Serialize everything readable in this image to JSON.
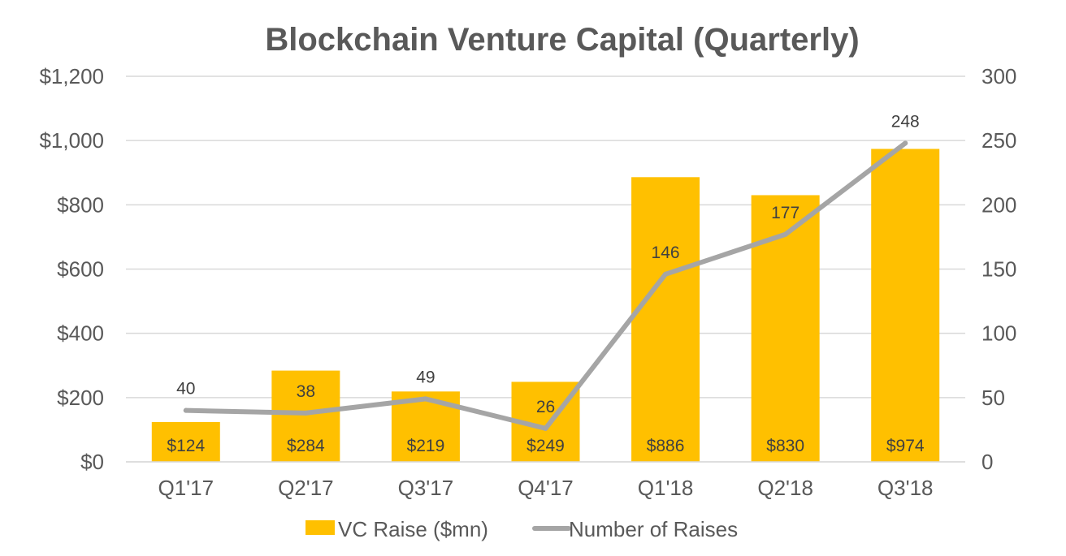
{
  "chart_data": {
    "type": "bar",
    "title": "Blockchain Venture Capital (Quarterly)",
    "categories": [
      "Q1'17",
      "Q2'17",
      "Q3'17",
      "Q4'17",
      "Q1'18",
      "Q2'18",
      "Q3'18"
    ],
    "series": [
      {
        "name": "VC Raise ($mn)",
        "type": "bar",
        "axis": "left",
        "color": "#FFC000",
        "values": [
          124,
          284,
          219,
          249,
          886,
          830,
          974
        ],
        "labels": [
          "$124",
          "$284",
          "$219",
          "$249",
          "$886",
          "$830",
          "$974"
        ]
      },
      {
        "name": "Number of Raises",
        "type": "line",
        "axis": "right",
        "color": "#A5A5A5",
        "values": [
          40,
          38,
          49,
          26,
          146,
          177,
          248
        ],
        "labels": [
          "40",
          "38",
          "49",
          "26",
          "146",
          "177",
          "248"
        ]
      }
    ],
    "y_left": {
      "range": [
        0,
        1200
      ],
      "ticks": [
        0,
        200,
        400,
        600,
        800,
        1000,
        1200
      ],
      "tick_labels": [
        "$0",
        "$200",
        "$400",
        "$600",
        "$800",
        "$1,000",
        "$1,200"
      ]
    },
    "y_right": {
      "range": [
        0,
        300
      ],
      "ticks": [
        0,
        50,
        100,
        150,
        200,
        250,
        300
      ],
      "tick_labels": [
        "0",
        "50",
        "100",
        "150",
        "200",
        "250",
        "300"
      ]
    },
    "xlabel": "",
    "ylabel": "",
    "grid": true,
    "legend_position": "bottom"
  }
}
